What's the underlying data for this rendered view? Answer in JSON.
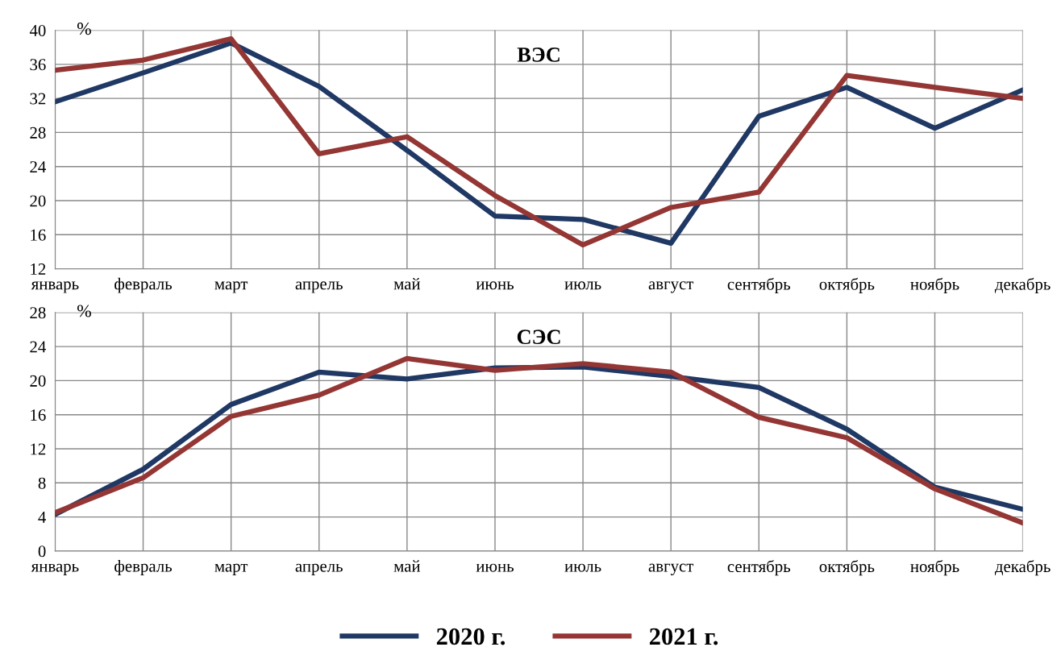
{
  "chart_data": [
    {
      "type": "line",
      "title": "ВЭС",
      "ylabel": "%",
      "categories": [
        "январь",
        "февраль",
        "март",
        "апрель",
        "май",
        "июнь",
        "июль",
        "август",
        "сентябрь",
        "октябрь",
        "ноябрь",
        "декабрь"
      ],
      "ylim": [
        12,
        40
      ],
      "yticks": [
        12,
        16,
        20,
        24,
        28,
        32,
        36,
        40
      ],
      "grid": true,
      "legend": false,
      "series": [
        {
          "color": "#1f3864",
          "values": [
            31.6,
            35.0,
            38.5,
            33.4,
            25.9,
            18.2,
            17.8,
            15.0,
            29.9,
            33.3,
            28.5,
            33.0
          ]
        },
        {
          "color": "#943634",
          "values": [
            35.3,
            36.5,
            39.0,
            25.5,
            27.5,
            20.6,
            14.8,
            19.2,
            21.0,
            34.7,
            33.3,
            32.0
          ]
        }
      ]
    },
    {
      "type": "line",
      "title": "СЭС",
      "ylabel": "%",
      "categories": [
        "январь",
        "февраль",
        "март",
        "апрель",
        "май",
        "июнь",
        "июль",
        "август",
        "сентябрь",
        "октябрь",
        "ноябрь",
        "декабрь"
      ],
      "ylim": [
        0,
        28
      ],
      "yticks": [
        0,
        4,
        8,
        12,
        16,
        20,
        24,
        28
      ],
      "grid": true,
      "legend": "bottom",
      "series": [
        {
          "name": "2020 г.",
          "color": "#1f3864",
          "values": [
            4.3,
            9.6,
            17.2,
            21.0,
            20.2,
            21.5,
            21.6,
            20.5,
            19.2,
            14.3,
            7.5,
            4.9
          ]
        },
        {
          "name": "2021 г.",
          "color": "#943634",
          "values": [
            4.5,
            8.6,
            15.8,
            18.3,
            22.6,
            21.2,
            22.0,
            21.0,
            15.7,
            13.3,
            7.3,
            3.3
          ]
        }
      ]
    }
  ]
}
